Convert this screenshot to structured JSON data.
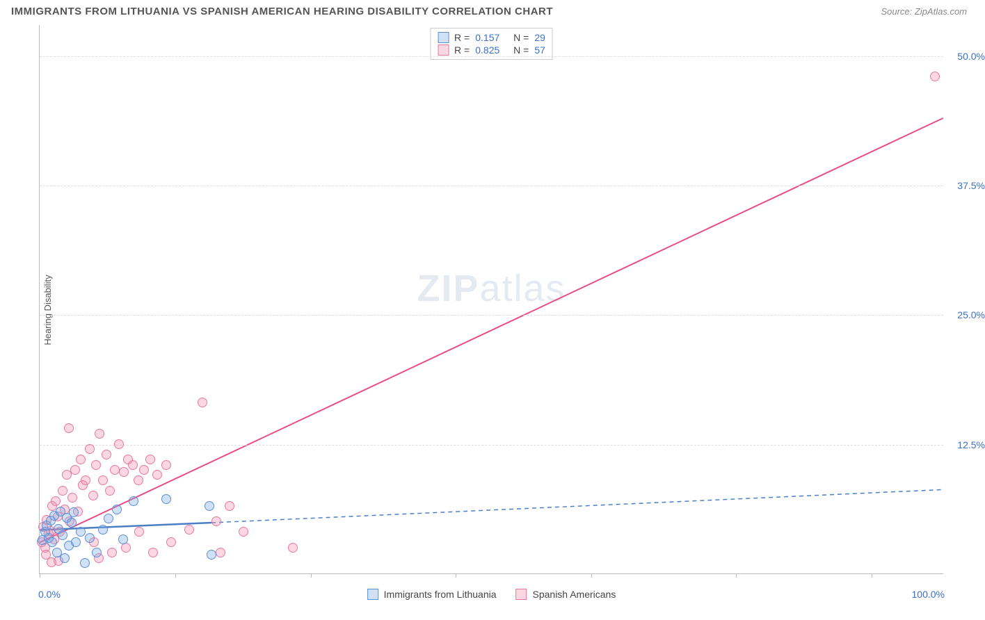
{
  "header": {
    "title": "IMMIGRANTS FROM LITHUANIA VS SPANISH AMERICAN HEARING DISABILITY CORRELATION CHART",
    "source": "Source: ZipAtlas.com"
  },
  "watermark": {
    "zip": "ZIP",
    "atlas": "atlas"
  },
  "chart": {
    "type": "scatter",
    "ylabel": "Hearing Disability",
    "xlim": [
      0,
      100
    ],
    "ylim": [
      0,
      53
    ],
    "xticks_pct": [
      0,
      15,
      30,
      46,
      61,
      77,
      92
    ],
    "yticks": [
      {
        "val": 12.5,
        "label": "12.5%"
      },
      {
        "val": 25.0,
        "label": "25.0%"
      },
      {
        "val": 37.5,
        "label": "37.5%"
      },
      {
        "val": 50.0,
        "label": "50.0%"
      }
    ],
    "xmin_label": "0.0%",
    "xmax_label": "100.0%",
    "background_color": "#ffffff",
    "grid_color": "#dddddd",
    "axis_color": "#bbbbbb",
    "tick_label_color": "#3b6fc9",
    "marker_radius": 7,
    "series": [
      {
        "id": "lithuania",
        "name": "Immigrants from Lithuania",
        "color_fill": "rgba(120,170,230,0.35)",
        "color_stroke": "#5a8fd6",
        "stats": {
          "R": "0.157",
          "N": "29"
        },
        "trend": {
          "x1": 0,
          "y1": 4.2,
          "x2": 19,
          "y2": 4.9,
          "x2_ext": 100,
          "y2_ext": 8.1,
          "width": 2.5,
          "dash_ext": "6,5",
          "color": "#4a7fc6"
        },
        "points": [
          [
            0.3,
            3.2
          ],
          [
            0.6,
            4.0
          ],
          [
            0.8,
            4.6
          ],
          [
            1.0,
            3.4
          ],
          [
            1.2,
            5.1
          ],
          [
            1.4,
            3.0
          ],
          [
            1.6,
            5.6
          ],
          [
            1.9,
            2.0
          ],
          [
            2.1,
            4.3
          ],
          [
            2.3,
            6.0
          ],
          [
            2.5,
            3.7
          ],
          [
            2.8,
            1.5
          ],
          [
            3.0,
            5.4
          ],
          [
            3.2,
            2.7
          ],
          [
            3.5,
            4.9
          ],
          [
            3.8,
            5.9
          ],
          [
            4.0,
            3.0
          ],
          [
            4.5,
            4.0
          ],
          [
            5.0,
            1.0
          ],
          [
            5.5,
            3.4
          ],
          [
            6.3,
            2.0
          ],
          [
            7.0,
            4.2
          ],
          [
            7.6,
            5.3
          ],
          [
            8.5,
            6.2
          ],
          [
            9.2,
            3.3
          ],
          [
            10.4,
            7.0
          ],
          [
            14.0,
            7.2
          ],
          [
            18.8,
            6.5
          ],
          [
            19.0,
            1.8
          ]
        ]
      },
      {
        "id": "spanish",
        "name": "Spanish Americans",
        "color_fill": "rgba(240,140,170,0.35)",
        "color_stroke": "#e77aa0",
        "stats": {
          "R": "0.825",
          "N": "57"
        },
        "trend": {
          "x1": 0,
          "y1": 3.0,
          "x2": 100,
          "y2": 44.0,
          "width": 2,
          "color": "#e84e88"
        },
        "points": [
          [
            0.2,
            3.0
          ],
          [
            0.4,
            4.5
          ],
          [
            0.6,
            2.5
          ],
          [
            0.8,
            5.2
          ],
          [
            1.0,
            3.8
          ],
          [
            1.2,
            4.1
          ],
          [
            1.4,
            6.5
          ],
          [
            1.6,
            3.3
          ],
          [
            1.8,
            7.0
          ],
          [
            2.0,
            5.5
          ],
          [
            2.2,
            4.0
          ],
          [
            2.5,
            8.0
          ],
          [
            2.8,
            6.2
          ],
          [
            3.0,
            9.5
          ],
          [
            3.3,
            5.0
          ],
          [
            3.6,
            7.3
          ],
          [
            3.9,
            10.0
          ],
          [
            4.2,
            6.0
          ],
          [
            4.5,
            11.0
          ],
          [
            4.8,
            8.5
          ],
          [
            5.1,
            9.0
          ],
          [
            5.5,
            12.0
          ],
          [
            5.9,
            7.5
          ],
          [
            6.2,
            10.5
          ],
          [
            6.6,
            13.5
          ],
          [
            7.0,
            9.0
          ],
          [
            7.4,
            11.5
          ],
          [
            7.8,
            8.0
          ],
          [
            8.3,
            10.0
          ],
          [
            8.8,
            12.5
          ],
          [
            9.3,
            9.8
          ],
          [
            9.8,
            11.0
          ],
          [
            10.3,
            10.5
          ],
          [
            10.9,
            9.0
          ],
          [
            11.5,
            10.0
          ],
          [
            12.2,
            11.0
          ],
          [
            13.0,
            9.5
          ],
          [
            14.0,
            10.5
          ],
          [
            3.2,
            14.0
          ],
          [
            6.0,
            3.0
          ],
          [
            8.0,
            2.0
          ],
          [
            9.5,
            2.5
          ],
          [
            11.0,
            4.0
          ],
          [
            12.5,
            2.0
          ],
          [
            14.5,
            3.0
          ],
          [
            16.5,
            4.2
          ],
          [
            18.0,
            16.5
          ],
          [
            19.5,
            5.0
          ],
          [
            21.0,
            6.5
          ],
          [
            22.5,
            4.0
          ],
          [
            20.0,
            2.0
          ],
          [
            6.5,
            1.5
          ],
          [
            28.0,
            2.5
          ],
          [
            2.1,
            1.2
          ],
          [
            1.3,
            1.1
          ],
          [
            0.7,
            1.8
          ],
          [
            99.0,
            48.0
          ]
        ]
      }
    ],
    "stats_legend": {
      "r_label": "R =",
      "n_label": "N ="
    }
  }
}
